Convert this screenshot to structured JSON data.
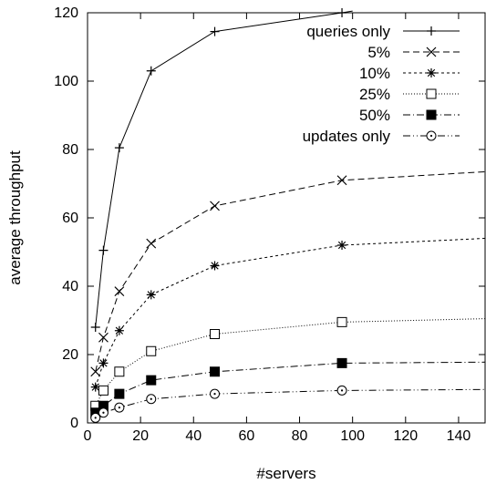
{
  "chart_data": {
    "type": "line",
    "xlabel": "#servers",
    "ylabel": "average throughput",
    "xlim": [
      0,
      150
    ],
    "ylim": [
      0,
      120
    ],
    "xticks": [
      0,
      20,
      40,
      60,
      80,
      100,
      120,
      140
    ],
    "yticks": [
      0,
      20,
      40,
      60,
      80,
      100,
      120
    ],
    "grid": false,
    "legend_position": "top-right",
    "series": [
      {
        "name": "queries only",
        "dash": "solid",
        "marker": "plus",
        "points": [
          [
            3,
            28
          ],
          [
            6,
            50.5
          ],
          [
            12,
            80.5
          ],
          [
            24,
            103
          ],
          [
            48,
            114.5
          ],
          [
            96,
            120
          ]
        ],
        "curve": [
          [
            3,
            28
          ],
          [
            6,
            50.5
          ],
          [
            12,
            80.5
          ],
          [
            24,
            103
          ],
          [
            48,
            114.5
          ],
          [
            96,
            120
          ],
          [
            100,
            120.5
          ]
        ]
      },
      {
        "name": "5%",
        "dash": "dashed",
        "marker": "x",
        "points": [
          [
            3,
            15
          ],
          [
            6,
            25
          ],
          [
            12,
            38.5
          ],
          [
            24,
            52.5
          ],
          [
            48,
            63.5
          ],
          [
            96,
            71
          ]
        ],
        "curve": [
          [
            3,
            15
          ],
          [
            6,
            25
          ],
          [
            12,
            38.5
          ],
          [
            24,
            52.5
          ],
          [
            48,
            63.5
          ],
          [
            96,
            71
          ],
          [
            150,
            73.5
          ]
        ]
      },
      {
        "name": "10%",
        "dash": "dotted-dashed",
        "marker": "asterisk",
        "points": [
          [
            3,
            10.5
          ],
          [
            6,
            17.5
          ],
          [
            12,
            27
          ],
          [
            24,
            37.5
          ],
          [
            48,
            46
          ],
          [
            96,
            52
          ]
        ],
        "curve": [
          [
            3,
            10.5
          ],
          [
            6,
            17.5
          ],
          [
            12,
            27
          ],
          [
            24,
            37.5
          ],
          [
            48,
            46
          ],
          [
            96,
            52
          ],
          [
            150,
            54
          ]
        ]
      },
      {
        "name": "25%",
        "dash": "dotted",
        "marker": "open-square",
        "points": [
          [
            3,
            5
          ],
          [
            6,
            9.5
          ],
          [
            12,
            15
          ],
          [
            24,
            21
          ],
          [
            48,
            26
          ],
          [
            96,
            29.5
          ]
        ],
        "curve": [
          [
            3,
            5
          ],
          [
            6,
            9.5
          ],
          [
            12,
            15
          ],
          [
            24,
            21
          ],
          [
            48,
            26
          ],
          [
            96,
            29.5
          ],
          [
            150,
            30.5
          ]
        ]
      },
      {
        "name": "50%",
        "dash": "dash-dot",
        "marker": "filled-square",
        "points": [
          [
            3,
            3
          ],
          [
            6,
            5
          ],
          [
            12,
            8.5
          ],
          [
            24,
            12.5
          ],
          [
            48,
            15
          ],
          [
            96,
            17.5
          ]
        ],
        "curve": [
          [
            3,
            3
          ],
          [
            6,
            5
          ],
          [
            12,
            8.5
          ],
          [
            24,
            12.5
          ],
          [
            48,
            15
          ],
          [
            96,
            17.5
          ],
          [
            150,
            17.8
          ]
        ]
      },
      {
        "name": "updates only",
        "dash": "dash-dot-dot",
        "marker": "circle-dot",
        "points": [
          [
            3,
            1.5
          ],
          [
            6,
            3
          ],
          [
            12,
            4.5
          ],
          [
            24,
            7
          ],
          [
            48,
            8.5
          ],
          [
            96,
            9.5
          ]
        ],
        "curve": [
          [
            3,
            1.5
          ],
          [
            6,
            3
          ],
          [
            12,
            4.5
          ],
          [
            24,
            7
          ],
          [
            48,
            8.5
          ],
          [
            96,
            9.5
          ],
          [
            150,
            9.8
          ]
        ]
      }
    ]
  }
}
